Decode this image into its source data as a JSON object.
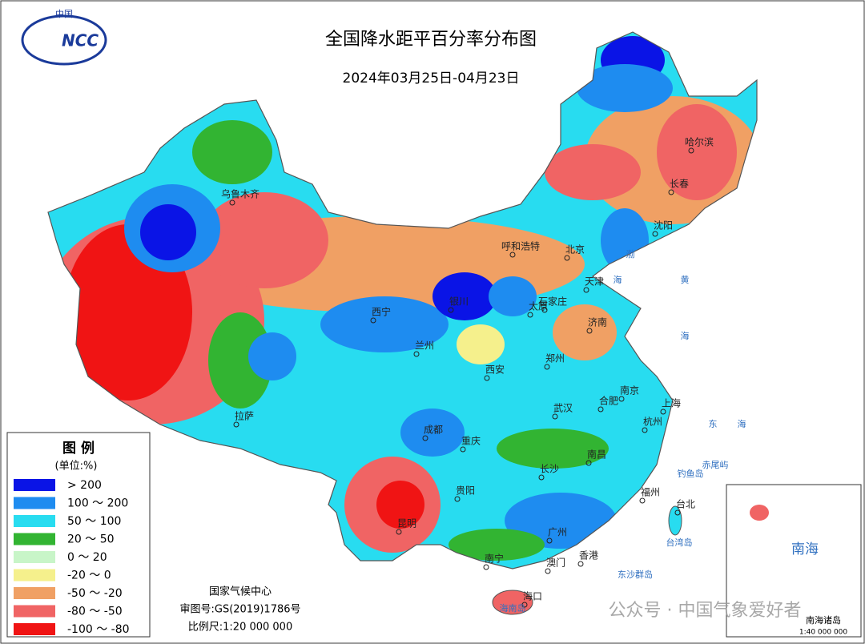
{
  "header": {
    "logo_top": "中国",
    "logo_text": "NCC",
    "title": "全国降水距平百分率分布图",
    "subtitle": "2024年03月25日-04月23日"
  },
  "legend": {
    "title": "图 例",
    "unit": "(单位:%)",
    "items": [
      {
        "label": "> 200",
        "color": "#0a14e6"
      },
      {
        "label": "100 ～ 200",
        "color": "#1e8cf0"
      },
      {
        "label": "50 ～ 100",
        "color": "#28dcf0"
      },
      {
        "label": "20 ～ 50",
        "color": "#32b432"
      },
      {
        "label": "0 ～ 20",
        "color": "#c8f5c8"
      },
      {
        "label": "-20 ～ 0",
        "color": "#f5f08c"
      },
      {
        "label": "-50 ～ -20",
        "color": "#f0a064"
      },
      {
        "label": "-80 ～ -50",
        "color": "#f06464"
      },
      {
        "label": "-100 ～ -80",
        "color": "#f01414"
      }
    ]
  },
  "cities": [
    "乌鲁木齐",
    "哈尔滨",
    "长春",
    "沈阳",
    "呼和浩特",
    "北京",
    "天津",
    "石家庄",
    "银川",
    "西宁",
    "太原",
    "济南",
    "兰州",
    "西安",
    "郑州",
    "南京",
    "合肥",
    "上海",
    "拉萨",
    "成都",
    "武汉",
    "杭州",
    "重庆",
    "南昌",
    "长沙",
    "贵阳",
    "福州",
    "台北",
    "昆明",
    "广州",
    "南宁",
    "澳门",
    "香港",
    "海口"
  ],
  "places": [
    "渤",
    "海",
    "黄",
    "海",
    "东",
    "海",
    "台湾岛",
    "钓鱼岛",
    "赤尾屿",
    "东沙群岛",
    "海南岛"
  ],
  "inset": {
    "title": "南海",
    "caption": "南海诸岛",
    "scale": "1:40 000 000"
  },
  "footer": {
    "agency": "国家气候中心",
    "approval": "审图号:GS(2019)1786号",
    "scale": "比例尺:1:20 000 000"
  },
  "watermark": "公众号 · 中国气象爱好者"
}
